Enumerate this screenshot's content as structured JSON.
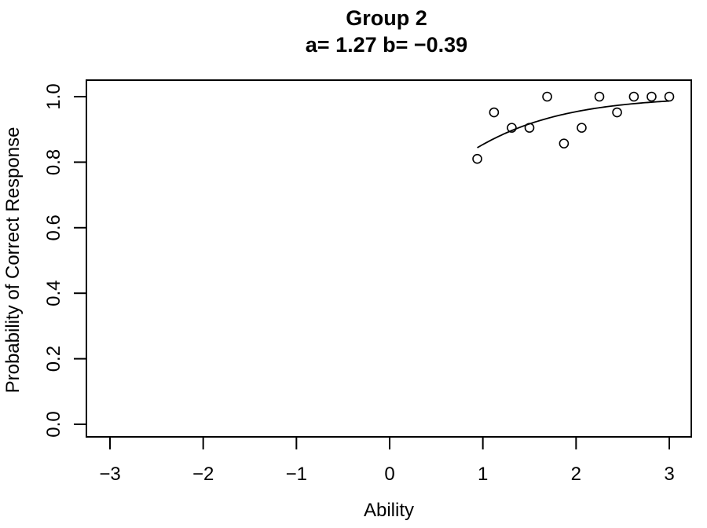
{
  "chart_data": {
    "type": "scatter",
    "title": "Group 2",
    "subtitle": "a= 1.27 b= −0.39",
    "xlabel": "Ability",
    "ylabel": "Probability of Correct Response",
    "xlim": [
      -3,
      3
    ],
    "ylim": [
      0,
      1
    ],
    "x_ticks": [
      -3,
      -2,
      -1,
      0,
      1,
      2,
      3
    ],
    "x_tick_labels": [
      "−3",
      "−2",
      "−1",
      "0",
      "1",
      "2",
      "3"
    ],
    "y_ticks": [
      0,
      0.2,
      0.4,
      0.6,
      0.8,
      1
    ],
    "y_tick_labels": [
      "0.0",
      "0.2",
      "0.4",
      "0.6",
      "0.8",
      "1.0"
    ],
    "grid": false,
    "points": {
      "x": [
        0.94,
        1.12,
        1.31,
        1.5,
        1.69,
        1.87,
        2.06,
        2.25,
        2.44,
        2.62,
        2.81,
        3.0
      ],
      "y": [
        0.81,
        0.952,
        0.905,
        0.905,
        1.0,
        0.857,
        0.905,
        1.0,
        0.952,
        1.0,
        1.0,
        1.0
      ]
    },
    "curve": {
      "model": "logistic",
      "a": 1.27,
      "b": -0.39,
      "x_range": [
        0.94,
        3.0
      ]
    }
  }
}
